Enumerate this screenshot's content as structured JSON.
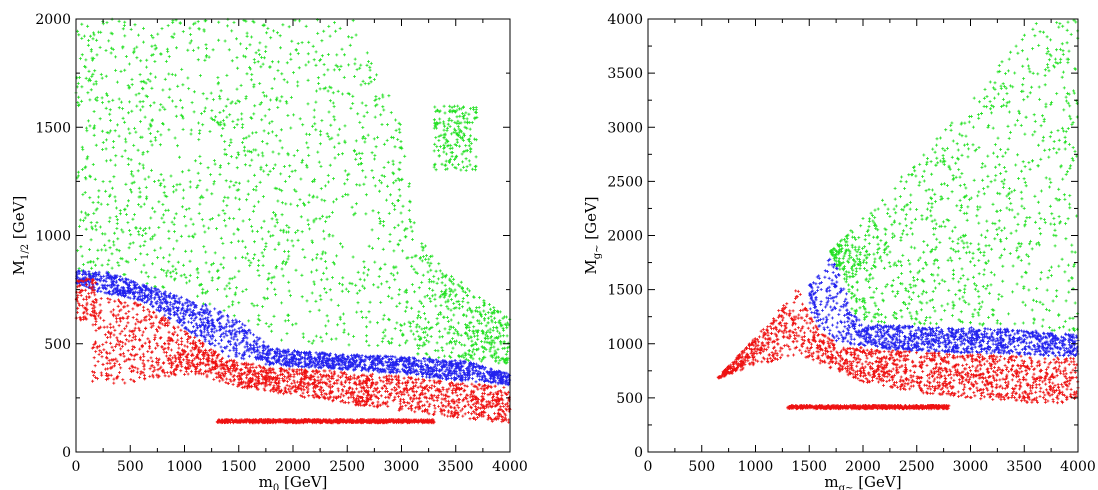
{
  "chart_data": [
    {
      "type": "scatter",
      "xlabel": "m0 [GeV]",
      "xlabel_main": "m",
      "xlabel_sub": "0",
      "xlabel_unit": " [GeV]",
      "ylabel": "M1/2 [GeV]",
      "ylabel_main": "M",
      "ylabel_sub": "1/2",
      "ylabel_unit": " [GeV]",
      "xlim": [
        0,
        4000
      ],
      "ylim": [
        0,
        2000
      ],
      "xticks": [
        "0",
        "500",
        "1000",
        "1500",
        "2000",
        "2500",
        "3000",
        "3500",
        "4000"
      ],
      "yticks": [
        "0",
        "500",
        "1000",
        "1500",
        "2000"
      ],
      "grid": false,
      "series": [
        {
          "color": "#22e022",
          "regions": [
            {
              "lower": [
                [
                  0,
                  820
                ],
                [
                  300,
                  820
                ],
                [
                  700,
                  760
                ],
                [
                  1200,
                  680
                ],
                [
                  1500,
                  620
                ],
                [
                  1800,
                  520
                ],
                [
                  2200,
                  500
                ],
                [
                  2600,
                  490
                ],
                [
                  2900,
                  470
                ],
                [
                  3200,
                  440
                ],
                [
                  3600,
                  420
                ],
                [
                  4000,
                  400
                ]
              ],
              "upper": [
                [
                  0,
                  2000
                ],
                [
                  2550,
                  2000
                ],
                [
                  2850,
                  1700
                ],
                [
                  3000,
                  1500
                ],
                [
                  3150,
                  1000
                ],
                [
                  3400,
                  850
                ],
                [
                  3700,
                  720
                ],
                [
                  4000,
                  620
                ]
              ]
            },
            {
              "lower": [
                [
                  3300,
                  1300
                ],
                [
                  3700,
                  1300
                ]
              ],
              "upper": [
                [
                  3300,
                  1600
                ],
                [
                  3700,
                  1600
                ]
              ]
            }
          ]
        },
        {
          "color": "#2222ee",
          "regions": [
            {
              "lower": [
                [
                  0,
                  780
                ],
                [
                  200,
                  740
                ],
                [
                  600,
                  700
                ],
                [
                  1000,
                  570
                ],
                [
                  1400,
                  440
                ],
                [
                  1800,
                  400
                ],
                [
                  2500,
                  380
                ],
                [
                  3000,
                  360
                ],
                [
                  3500,
                  330
                ],
                [
                  4000,
                  310
                ]
              ],
              "upper": [
                [
                  0,
                  840
                ],
                [
                  300,
                  830
                ],
                [
                  700,
                  760
                ],
                [
                  1200,
                  680
                ],
                [
                  1500,
                  610
                ],
                [
                  1800,
                  480
                ],
                [
                  2200,
                  460
                ],
                [
                  2600,
                  450
                ],
                [
                  3000,
                  440
                ],
                [
                  3300,
                  430
                ],
                [
                  3600,
                  420
                ],
                [
                  4000,
                  360
                ]
              ]
            }
          ]
        },
        {
          "color": "#ee1111",
          "regions": [
            {
              "lower": [
                [
                  150,
                  290
                ],
                [
                  700,
                  340
                ],
                [
                  1100,
                  360
                ],
                [
                  1500,
                  300
                ],
                [
                  2000,
                  260
                ],
                [
                  2500,
                  220
                ],
                [
                  3000,
                  190
                ],
                [
                  3500,
                  160
                ],
                [
                  4000,
                  130
                ]
              ],
              "upper": [
                [
                  150,
                  780
                ],
                [
                  200,
                  720
                ],
                [
                  600,
                  690
                ],
                [
                  1000,
                  560
                ],
                [
                  1400,
                  430
                ],
                [
                  1800,
                  390
                ],
                [
                  2500,
                  370
                ],
                [
                  3000,
                  350
                ],
                [
                  3500,
                  320
                ],
                [
                  4000,
                  300
                ]
              ]
            },
            {
              "lower": [
                [
                  0,
                  600
                ],
                [
                  180,
                  620
                ]
              ],
              "upper": [
                [
                  0,
                  800
                ],
                [
                  180,
                  800
                ]
              ]
            },
            {
              "lower": [
                [
                  1300,
                  135
                ],
                [
                  3300,
                  135
                ]
              ],
              "upper": [
                [
                  1300,
                  150
                ],
                [
                  3300,
                  150
                ]
              ]
            }
          ]
        }
      ]
    },
    {
      "type": "scatter",
      "xlabel": "mg~ [GeV]",
      "xlabel_main": "m",
      "xlabel_sub": "g~",
      "xlabel_unit": " [GeV]",
      "ylabel": "Mg~ [GeV]",
      "ylabel_main": "M",
      "ylabel_sub": "g~",
      "ylabel_unit": " [GeV]",
      "xlim": [
        0,
        4000
      ],
      "ylim": [
        0,
        4000
      ],
      "xticks": [
        "0",
        "500",
        "1000",
        "1500",
        "2000",
        "2500",
        "3000",
        "3500",
        "4000"
      ],
      "yticks": [
        "0",
        "500",
        "1000",
        "1500",
        "2000",
        "2500",
        "3000",
        "3500",
        "4000"
      ],
      "grid": false,
      "series": [
        {
          "color": "#22e022",
          "regions": [
            {
              "lower": [
                [
                  1700,
                  1850
                ],
                [
                  1800,
                  1600
                ],
                [
                  1900,
                  1300
                ],
                [
                  2000,
                  1200
                ],
                [
                  2500,
                  1180
                ],
                [
                  3000,
                  1170
                ],
                [
                  3500,
                  1150
                ],
                [
                  4000,
                  1100
                ]
              ],
              "upper": [
                [
                  1700,
                  1860
                ],
                [
                  2500,
                  2700
                ],
                [
                  3000,
                  3250
                ],
                [
                  3600,
                  4000
                ],
                [
                  4000,
                  4000
                ]
              ]
            }
          ]
        },
        {
          "color": "#2222ee",
          "regions": [
            {
              "lower": [
                [
                  1500,
                  1300
                ],
                [
                  1600,
                  1100
                ],
                [
                  1800,
                  1000
                ],
                [
                  2200,
                  950
                ],
                [
                  2800,
                  920
                ],
                [
                  3500,
                  900
                ],
                [
                  4000,
                  880
                ]
              ],
              "upper": [
                [
                  1500,
                  1540
                ],
                [
                  1700,
                  1840
                ],
                [
                  1800,
                  1600
                ],
                [
                  1900,
                  1300
                ],
                [
                  2000,
                  1180
                ],
                [
                  2500,
                  1160
                ],
                [
                  3000,
                  1150
                ],
                [
                  3500,
                  1130
                ],
                [
                  4000,
                  1080
                ]
              ]
            }
          ]
        },
        {
          "color": "#ee1111",
          "regions": [
            {
              "lower": [
                [
                  650,
                  680
                ],
                [
                  1000,
                  800
                ],
                [
                  1400,
                  900
                ],
                [
                  1500,
                  860
                ],
                [
                  2000,
                  650
                ],
                [
                  2500,
                  550
                ],
                [
                  3000,
                  500
                ],
                [
                  3500,
                  460
                ],
                [
                  4000,
                  450
                ]
              ],
              "upper": [
                [
                  650,
                  690
                ],
                [
                  1000,
                  1060
                ],
                [
                  1400,
                  1520
                ],
                [
                  1500,
                  1300
                ],
                [
                  1600,
                  1100
                ],
                [
                  1800,
                  990
                ],
                [
                  2200,
                  940
                ],
                [
                  2800,
                  910
                ],
                [
                  3500,
                  890
                ],
                [
                  4000,
                  870
                ]
              ]
            },
            {
              "lower": [
                [
                  1300,
                  400
                ],
                [
                  2800,
                  400
                ]
              ],
              "upper": [
                [
                  1300,
                  430
                ],
                [
                  2800,
                  430
                ]
              ]
            }
          ]
        }
      ]
    }
  ]
}
